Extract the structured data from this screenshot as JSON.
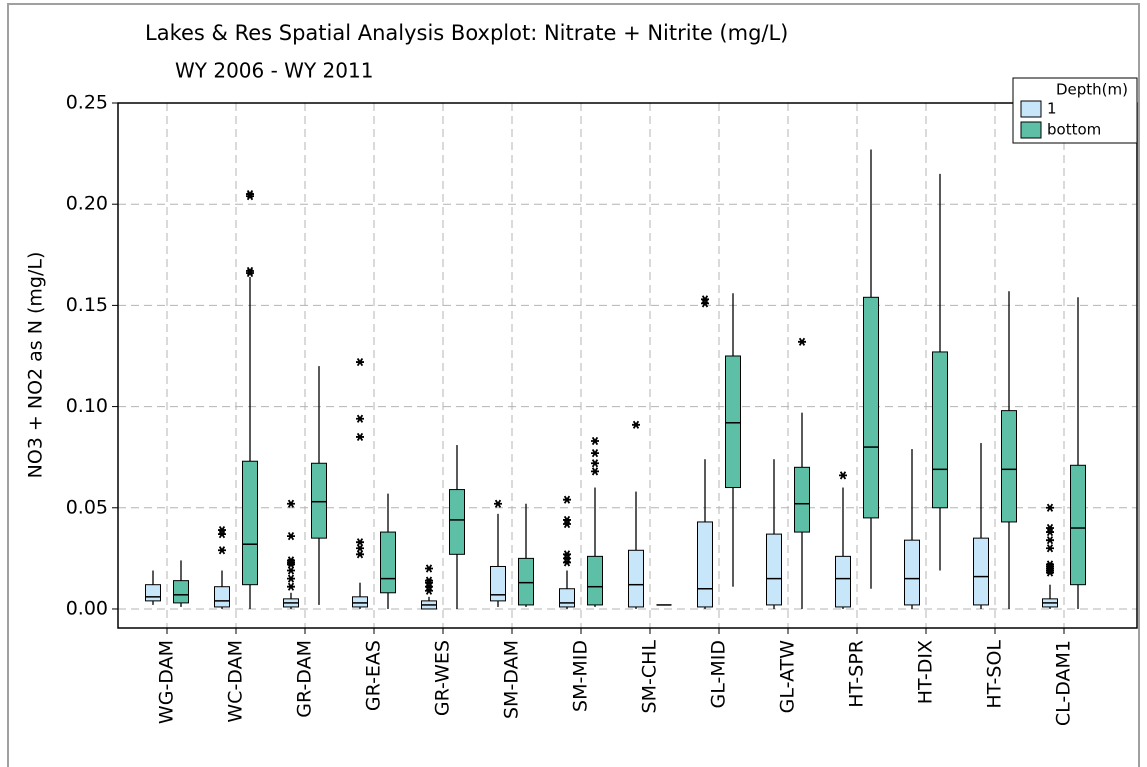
{
  "chart_data": {
    "type": "boxplot",
    "title": "Lakes & Res Spatial Analysis Boxplot: Nitrate + Nitrite (mg/L)",
    "subtitle": "WY 2006 - WY 2011",
    "y_label": "NO3 + NO2 as N (mg/L)",
    "legend_title": "Depth(m)",
    "legend": "right",
    "grid": true,
    "categories": [
      "WG-DAM",
      "WC-DAM",
      "GR-DAM",
      "GR-EAS",
      "GR-WES",
      "SM-DAM",
      "SM-MID",
      "SM-CHL",
      "GL-MID",
      "GL-ATW",
      "HT-SPR",
      "HT-DIX",
      "HT-SOL",
      "CL-DAM1"
    ],
    "ylim": [
      -0.0094,
      0.25
    ],
    "yticks": [
      {
        "value": 0,
        "label": "0.00"
      },
      0.05,
      {
        "value": 0.1,
        "label": "0.10"
      },
      0.15,
      {
        "value": 0.2,
        "label": "0.20"
      },
      0.25
    ],
    "series": [
      {
        "name": "1",
        "color": "#c8e6fa",
        "whisker_low": [
          0.002,
          0.0,
          0.0,
          0.0,
          0.0,
          0.001,
          0.0,
          0.0,
          0.0,
          0.0,
          0.0,
          0.0,
          0.0,
          0.0
        ],
        "q1": [
          0.004,
          0.001,
          0.001,
          0.001,
          0.0,
          0.004,
          0.001,
          0.001,
          0.001,
          0.002,
          0.001,
          0.002,
          0.002,
          0.001
        ],
        "median": [
          0.006,
          0.004,
          0.003,
          0.003,
          0.002,
          0.007,
          0.003,
          0.012,
          0.01,
          0.015,
          0.015,
          0.015,
          0.016,
          0.003
        ],
        "q3": [
          0.012,
          0.011,
          0.005,
          0.006,
          0.004,
          0.021,
          0.01,
          0.029,
          0.043,
          0.037,
          0.026,
          0.034,
          0.035,
          0.005
        ],
        "whisker_high": [
          0.019,
          0.019,
          0.008,
          0.013,
          0.006,
          0.047,
          0.019,
          0.058,
          0.074,
          0.074,
          0.06,
          0.079,
          0.082,
          0.012
        ],
        "outliers": [
          [],
          [
            0.029,
            0.037,
            0.039
          ],
          [
            0.011,
            0.015,
            0.019,
            0.022,
            0.023,
            0.024,
            0.036,
            0.052
          ],
          [
            0.027,
            0.03,
            0.033,
            0.085,
            0.094,
            0.122
          ],
          [
            0.009,
            0.011,
            0.013,
            0.014,
            0.02
          ],
          [
            0.052
          ],
          [
            0.023,
            0.025,
            0.027,
            0.042,
            0.044,
            0.054
          ],
          [
            0.091
          ],
          [
            0.151,
            0.153
          ],
          [],
          [
            0.066
          ],
          [],
          [],
          [
            0.018,
            0.019,
            0.02,
            0.021,
            0.022,
            0.03,
            0.034,
            0.038,
            0.04,
            0.05
          ]
        ]
      },
      {
        "name": "bottom",
        "color": "#5cbfa6",
        "whisker_low": [
          0.001,
          0.0,
          0.002,
          0.0,
          0.0,
          0.001,
          0.001,
          0.002,
          0.011,
          0.0,
          0.01,
          0.019,
          0.0,
          0.0
        ],
        "q1": [
          0.003,
          0.012,
          0.035,
          0.008,
          0.027,
          0.002,
          0.002,
          0.002,
          0.06,
          0.038,
          0.045,
          0.05,
          0.043,
          0.012
        ],
        "median": [
          0.007,
          0.032,
          0.053,
          0.015,
          0.044,
          0.013,
          0.011,
          0.002,
          0.092,
          0.052,
          0.08,
          0.069,
          0.069,
          0.04
        ],
        "q3": [
          0.014,
          0.073,
          0.072,
          0.038,
          0.059,
          0.025,
          0.026,
          0.002,
          0.125,
          0.07,
          0.154,
          0.127,
          0.098,
          0.071
        ],
        "whisker_high": [
          0.024,
          0.164,
          0.12,
          0.057,
          0.081,
          0.052,
          0.06,
          0.002,
          0.156,
          0.097,
          0.227,
          0.215,
          0.157,
          0.154
        ],
        "outliers": [
          [],
          [
            0.166,
            0.167,
            0.204,
            0.205
          ],
          [],
          [],
          [],
          [],
          [
            0.068,
            0.072,
            0.077,
            0.083
          ],
          [],
          [],
          [
            0.132
          ],
          [],
          [],
          [],
          []
        ]
      }
    ]
  }
}
